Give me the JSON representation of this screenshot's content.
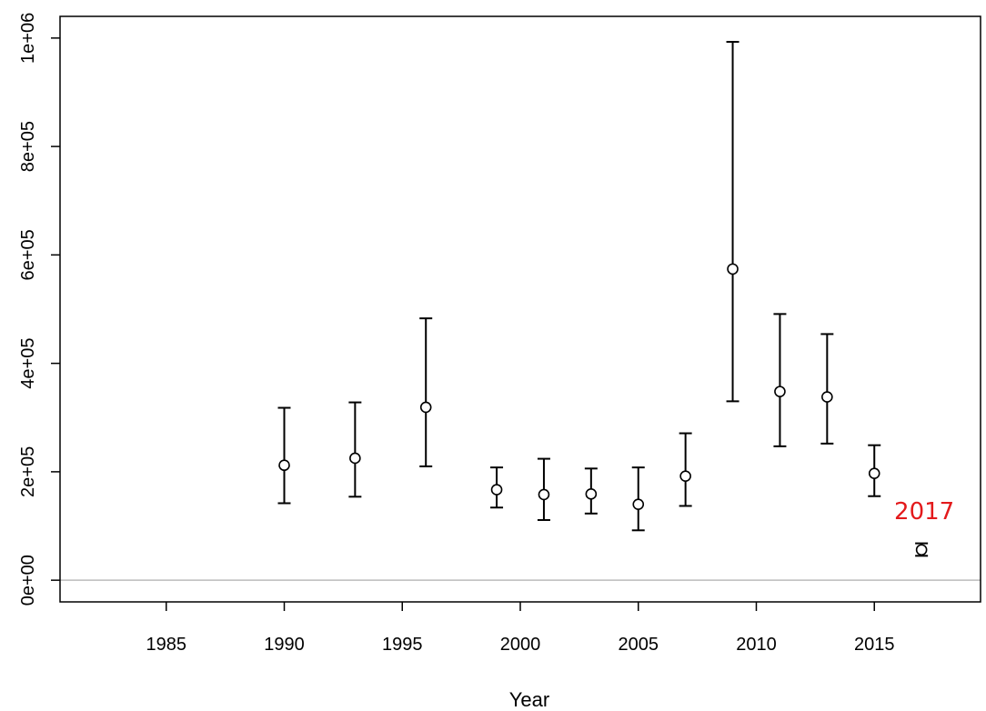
{
  "chart_data": {
    "type": "scatter",
    "title": "",
    "xlabel": "Year",
    "ylabel": "",
    "xlim": [
      1980.5,
      2019.5
    ],
    "ylim": [
      -40000,
      1040000
    ],
    "x_ticks": [
      1985,
      1990,
      1995,
      2000,
      2005,
      2010,
      2015
    ],
    "x_tick_labels": [
      "1985",
      "1990",
      "1995",
      "2000",
      "2005",
      "2010",
      "2015"
    ],
    "y_ticks": [
      0,
      200000,
      400000,
      600000,
      800000,
      1000000
    ],
    "y_tick_labels": [
      "0e+00",
      "2e+05",
      "4e+05",
      "6e+05",
      "8e+05",
      "1e+06"
    ],
    "grid": false,
    "reference_line": {
      "y": 0,
      "color": "#bbbbbb"
    },
    "marker_color": "#000000",
    "series": [
      {
        "points": [
          {
            "x": 1990,
            "y": 212000,
            "lower": 142000,
            "upper": 318000
          },
          {
            "x": 1993,
            "y": 225000,
            "lower": 154000,
            "upper": 328000
          },
          {
            "x": 1996,
            "y": 319000,
            "lower": 210000,
            "upper": 483000
          },
          {
            "x": 1999,
            "y": 167000,
            "lower": 134000,
            "upper": 208000
          },
          {
            "x": 2001,
            "y": 158000,
            "lower": 111000,
            "upper": 224000
          },
          {
            "x": 2003,
            "y": 159000,
            "lower": 123000,
            "upper": 206000
          },
          {
            "x": 2005,
            "y": 140000,
            "lower": 92000,
            "upper": 208000
          },
          {
            "x": 2007,
            "y": 192000,
            "lower": 137000,
            "upper": 271000
          },
          {
            "x": 2009,
            "y": 574000,
            "lower": 330000,
            "upper": 993000
          },
          {
            "x": 2011,
            "y": 348000,
            "lower": 247000,
            "upper": 491000
          },
          {
            "x": 2013,
            "y": 338000,
            "lower": 252000,
            "upper": 454000
          },
          {
            "x": 2015,
            "y": 197000,
            "lower": 155000,
            "upper": 249000
          },
          {
            "x": 2017,
            "y": 56000,
            "lower": 45000,
            "upper": 68000
          }
        ]
      }
    ],
    "annotations": [
      {
        "text": "2017",
        "x": 2017,
        "y": 113000,
        "color": "#e31a1c"
      }
    ]
  }
}
